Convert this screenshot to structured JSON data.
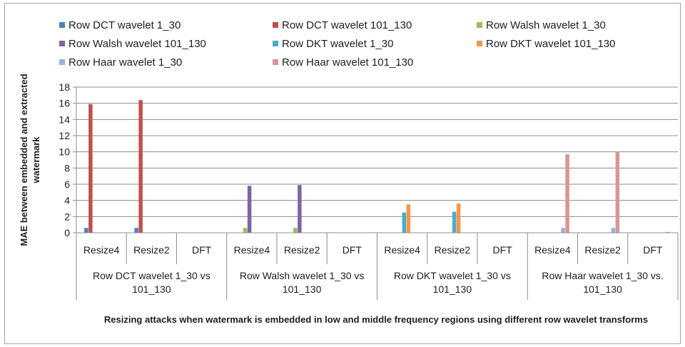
{
  "chart_data": {
    "type": "bar",
    "title": "",
    "ylabel": "MAE between embedded and extracted watermark",
    "xlabel": "Resizing attacks when watermark is embedded in low and middle frequency regions using different row wavelet transforms",
    "ylim": [
      0,
      18
    ],
    "ytick_step": 2,
    "yticks": [
      "0",
      "2",
      "4",
      "6",
      "8",
      "10",
      "12",
      "14",
      "16",
      "18"
    ],
    "grid": true,
    "legend_position": "top",
    "groups": [
      {
        "label": "Row DCT wavelet 1_30 vs 101_130",
        "categories": [
          "Resize4",
          "Resize2",
          "DFT"
        ]
      },
      {
        "label": "Row Walsh wavelet 1_30 vs 101_130",
        "categories": [
          "Resize4",
          "Resize2",
          "DFT"
        ]
      },
      {
        "label": "Row DKT wavelet 1_30 vs 101_130",
        "categories": [
          "Resize4",
          "Resize2",
          "DFT"
        ]
      },
      {
        "label": "Row Haar wavelet 1_30 vs. 101_130",
        "categories": [
          "Resize4",
          "Resize2",
          "DFT"
        ]
      }
    ],
    "categories": [
      "Resize4",
      "Resize2",
      "DFT",
      "Resize4",
      "Resize2",
      "DFT",
      "Resize4",
      "Resize2",
      "DFT",
      "Resize4",
      "Resize2",
      "DFT"
    ],
    "series": [
      {
        "name": "Row DCT wavelet 1_30",
        "color": "#4f81bd",
        "values": [
          0.6,
          0.6,
          0,
          0,
          0,
          0,
          0,
          0,
          0,
          0,
          0,
          0
        ]
      },
      {
        "name": "Row DCT wavelet 101_130",
        "color": "#c0504d",
        "values": [
          15.9,
          16.4,
          0,
          0,
          0,
          0,
          0,
          0,
          0,
          0,
          0,
          0
        ]
      },
      {
        "name": "Row Walsh wavelet 1_30",
        "color": "#9bbb59",
        "values": [
          0,
          0,
          0,
          0.6,
          0.6,
          0,
          0,
          0,
          0,
          0,
          0,
          0
        ]
      },
      {
        "name": "Row Walsh wavelet 101_130",
        "color": "#8064a2",
        "values": [
          0,
          0,
          0,
          5.8,
          5.9,
          0,
          0,
          0,
          0,
          0,
          0,
          0
        ]
      },
      {
        "name": "Row DKT wavelet 1_30",
        "color": "#4bacc6",
        "values": [
          0,
          0,
          0,
          0,
          0,
          0,
          2.5,
          2.6,
          0,
          0,
          0,
          0
        ]
      },
      {
        "name": "Row DKT wavelet 101_130",
        "color": "#f79646",
        "values": [
          0,
          0,
          0,
          0,
          0,
          0,
          3.5,
          3.6,
          0,
          0,
          0,
          0
        ]
      },
      {
        "name": "Row Haar wavelet 1_30",
        "color": "#95b3d7",
        "values": [
          0,
          0,
          0,
          0,
          0,
          0,
          0,
          0,
          0,
          0.6,
          0.6,
          0
        ]
      },
      {
        "name": "Row Haar wavelet 101_130",
        "color": "#da9694",
        "values": [
          0,
          0,
          0,
          0,
          0,
          0,
          0,
          0,
          0,
          9.7,
          10.0,
          0.1
        ]
      }
    ]
  }
}
